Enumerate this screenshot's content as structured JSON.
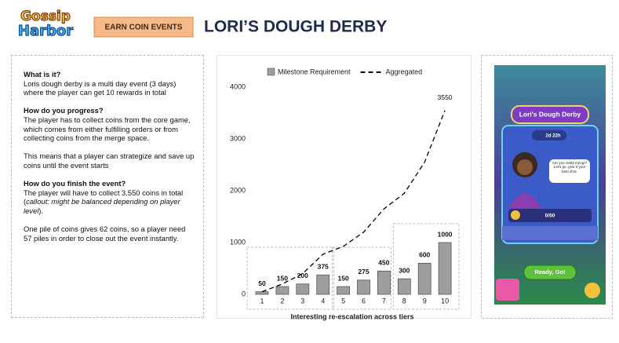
{
  "header": {
    "logo": [
      "Gossip",
      "Harbor"
    ],
    "tag": "EARN COIN EVENTS",
    "title": "LORI’S DOUGH DERBY"
  },
  "description": [
    {
      "heading": "What is it?",
      "paragraphs": [
        [
          "Loris dough derby is a multi day event (3 days) where the player can get 10 rewards in total"
        ]
      ]
    },
    {
      "heading": "How do you progress?",
      "paragraphs": [
        [
          "The player has to collect coins from the core game, which comes from either fulfilling orders or from collecting coins from the merge space."
        ],
        [
          "This means that a player can strategize and save up coins until the event starts"
        ]
      ]
    },
    {
      "heading": "How do you finish the event?",
      "paragraphs": [
        [
          "The player will have to collect 3.550 coins in total (",
          {
            "text": "callout: might be balanced depending on player level",
            "style": "italic"
          },
          ")."
        ],
        [
          "One pile of coins gives 62 coins, so a player need 57 piles in order to close out the event instantly."
        ]
      ]
    }
  ],
  "chart_data": {
    "type": "bar",
    "categories": [
      "1",
      "2",
      "3",
      "4",
      "5",
      "6",
      "7",
      "8",
      "9",
      "10"
    ],
    "series": [
      {
        "name": "Milestone Requirement",
        "type": "bar",
        "color": "#9e9e9e",
        "data_labels": "all",
        "values": [
          50,
          150,
          200,
          375,
          150,
          275,
          450,
          300,
          600,
          1000
        ]
      },
      {
        "name": "Aggregated",
        "type": "line",
        "color": "#111111",
        "dashed": true,
        "data_labels": "last",
        "values": [
          50,
          200,
          400,
          775,
          925,
          1200,
          1650,
          1950,
          2550,
          3550
        ]
      }
    ],
    "xlabel": "Interesting re-escalation across tiers",
    "ylim": [
      0,
      4000
    ],
    "yticks": [
      0,
      1000,
      2000,
      3000,
      4000
    ],
    "grid": false,
    "legend": "top"
  },
  "game_screen": {
    "banner": "Lori's Dough Derby",
    "timer": "2d 22h",
    "speech": "Are you really trying!? Let's go, give it your best shot.",
    "progress": "0/50",
    "button": "Ready, Go!"
  }
}
